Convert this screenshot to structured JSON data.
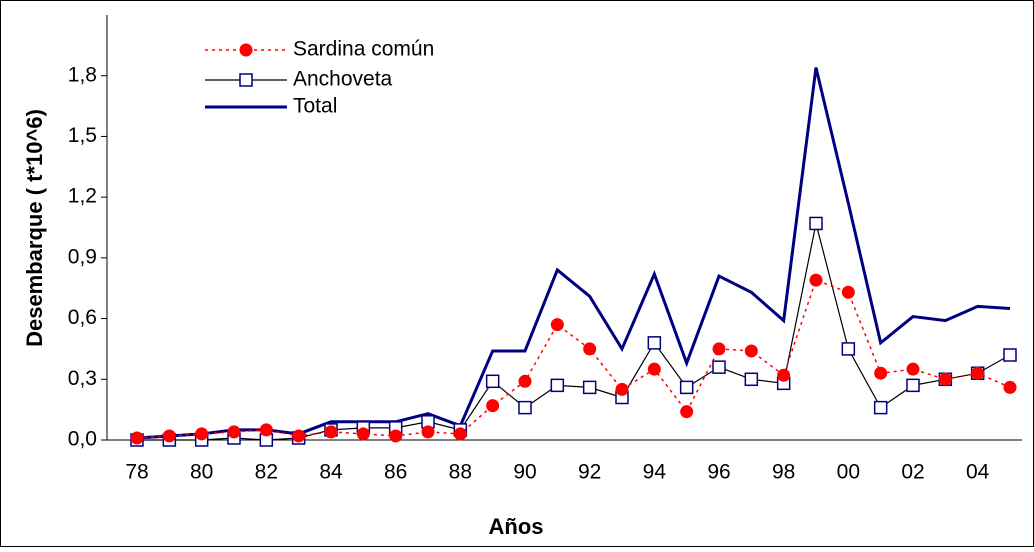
{
  "chart_data": {
    "type": "line",
    "xlabel": "Años",
    "ylabel": "Desembarque ( t*10^6)",
    "categories": [
      "78",
      null,
      "80",
      null,
      "82",
      null,
      "84",
      null,
      "86",
      null,
      "88",
      null,
      "90",
      null,
      "92",
      null,
      "94",
      null,
      "96",
      null,
      "98",
      null,
      "00",
      null,
      "02",
      null,
      "04",
      null
    ],
    "series": [
      {
        "name": "Sardina común",
        "color": "#ff0000",
        "values": [
          0.01,
          0.02,
          0.03,
          0.04,
          0.05,
          0.02,
          0.04,
          0.03,
          0.02,
          0.04,
          0.03,
          0.17,
          0.29,
          0.57,
          0.45,
          0.25,
          0.35,
          0.14,
          0.45,
          0.44,
          0.32,
          0.79,
          0.73,
          0.33,
          0.35,
          0.3,
          0.33,
          0.26
        ]
      },
      {
        "name": "Anchoveta",
        "color": "#000000",
        "values": [
          0.0,
          0.0,
          0.0,
          0.01,
          0.0,
          0.01,
          0.05,
          0.06,
          0.06,
          0.09,
          0.05,
          0.29,
          0.16,
          0.27,
          0.26,
          0.21,
          0.48,
          0.26,
          0.36,
          0.3,
          0.28,
          1.07,
          0.45,
          0.16,
          0.27,
          0.3,
          0.33,
          0.42
        ]
      },
      {
        "name": "Total",
        "color": "#000080",
        "values": [
          0.01,
          0.02,
          0.03,
          0.05,
          0.05,
          0.03,
          0.09,
          0.09,
          0.09,
          0.13,
          0.07,
          0.44,
          0.44,
          0.84,
          0.71,
          0.45,
          0.82,
          0.38,
          0.81,
          0.73,
          0.59,
          1.84,
          1.17,
          0.48,
          0.61,
          0.59,
          0.66,
          0.65
        ]
      }
    ],
    "ylim": [
      0,
      2.1
    ],
    "yticks": [
      {
        "value": 0,
        "label": "0,0"
      },
      {
        "value": 0.3,
        "label": "0,3"
      },
      {
        "value": 0.6,
        "label": "0,6"
      },
      {
        "value": 0.9,
        "label": "0,9"
      },
      {
        "value": 1.2,
        "label": "1,2"
      },
      {
        "value": 1.5,
        "label": "1,5"
      },
      {
        "value": 1.8,
        "label": "1,8"
      }
    ],
    "grid": false,
    "legend": "upper left"
  }
}
